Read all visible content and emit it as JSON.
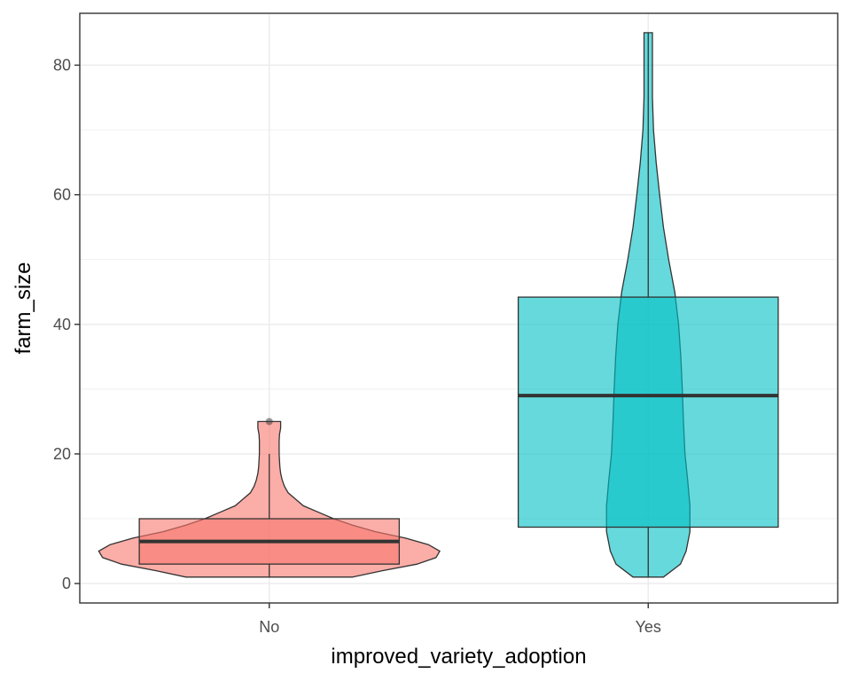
{
  "chart_data": {
    "type": "violin_box",
    "xlabel": "improved_variety_adoption",
    "ylabel": "farm_size",
    "categories": [
      "No",
      "Yes"
    ],
    "ylim": [
      -3,
      88
    ],
    "yticks": [
      0,
      20,
      40,
      60,
      80
    ],
    "ytick_labels": [
      "0",
      "20",
      "40",
      "60",
      "80"
    ],
    "grid": true,
    "legend": "none",
    "colors": {
      "No": "#F8766D",
      "Yes": "#00BFC4",
      "outline": "#333333",
      "grid": "#ebebeb",
      "panel_border": "#333333"
    },
    "groups": [
      {
        "name": "No",
        "boxplot": {
          "q1": 3,
          "median": 6.5,
          "q3": 10,
          "whisker_low": 1,
          "whisker_high": 20,
          "outliers": [
            25
          ]
        },
        "violin": {
          "y": [
            1,
            2,
            3,
            4,
            5,
            6,
            7,
            8,
            9,
            10,
            11,
            12,
            13,
            14,
            15,
            16,
            17,
            18,
            19,
            20,
            21,
            22,
            23,
            24,
            25
          ],
          "half_width": [
            0.22,
            0.3,
            0.39,
            0.44,
            0.45,
            0.42,
            0.36,
            0.28,
            0.22,
            0.17,
            0.13,
            0.09,
            0.07,
            0.05,
            0.04,
            0.034,
            0.03,
            0.028,
            0.027,
            0.026,
            0.026,
            0.026,
            0.027,
            0.03,
            0.03
          ]
        }
      },
      {
        "name": "Yes",
        "boxplot": {
          "q1": 8.7,
          "median": 29,
          "q3": 44.2,
          "whisker_low": 1,
          "whisker_high": 85
        },
        "violin": {
          "y": [
            1,
            3,
            5,
            8,
            12,
            16,
            20,
            25,
            30,
            35,
            40,
            45,
            50,
            55,
            60,
            65,
            70,
            75,
            80,
            85
          ],
          "half_width": [
            0.04,
            0.085,
            0.1,
            0.11,
            0.11,
            0.104,
            0.097,
            0.093,
            0.09,
            0.086,
            0.08,
            0.07,
            0.054,
            0.04,
            0.03,
            0.021,
            0.014,
            0.011,
            0.011,
            0.011
          ]
        }
      }
    ]
  }
}
